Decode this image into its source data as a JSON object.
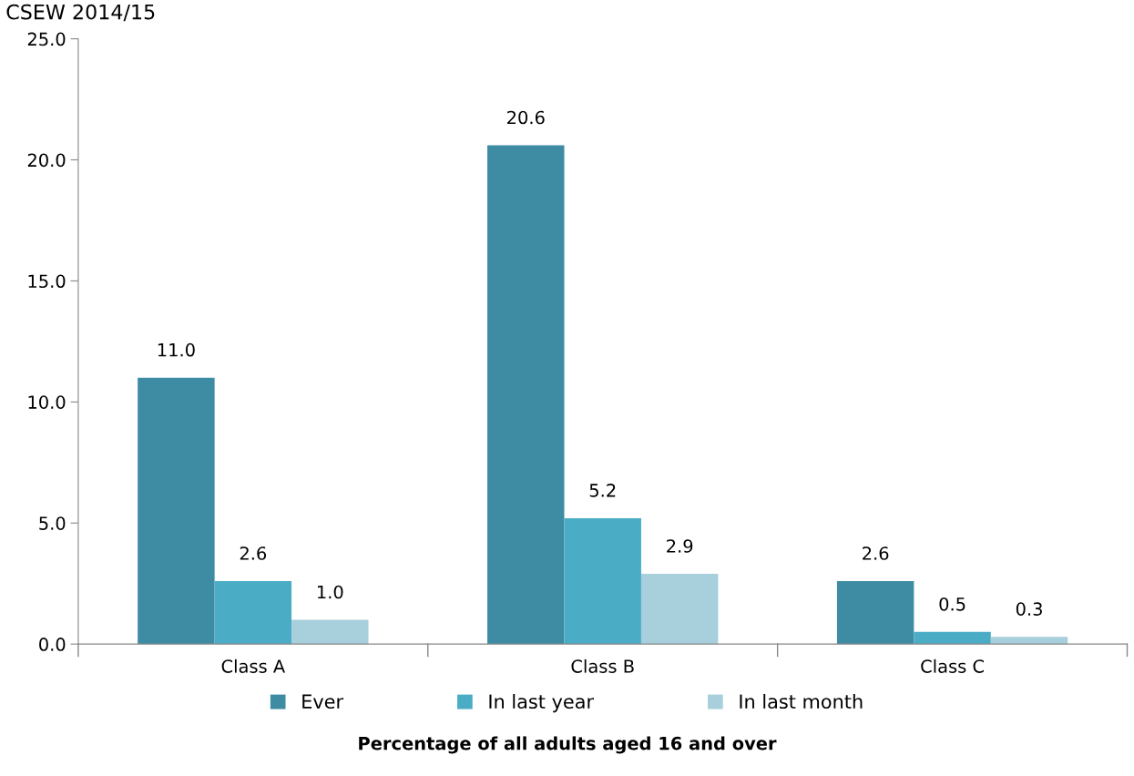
{
  "chart_data": {
    "type": "bar",
    "title": "CSEW 2014/15",
    "xlabel": "Percentage of all adults aged 16 and over",
    "categories": [
      "Class A",
      "Class B",
      "Class C"
    ],
    "series": [
      {
        "name": "Ever",
        "color": "#3d8ca3",
        "values": [
          11.0,
          20.6,
          2.6
        ],
        "value_labels": [
          "11.0",
          "20.6",
          "2.6"
        ]
      },
      {
        "name": "In last year",
        "color": "#4bacc6",
        "values": [
          2.6,
          5.2,
          0.5
        ],
        "value_labels": [
          "2.6",
          "5.2",
          "0.5"
        ]
      },
      {
        "name": "In last month",
        "color": "#a8cfdc",
        "values": [
          1.0,
          2.9,
          0.3
        ],
        "value_labels": [
          "1.0",
          "2.9",
          "0.3"
        ]
      }
    ],
    "ylim": [
      0,
      25
    ],
    "yticks": [
      {
        "value": 0,
        "label": "0.0"
      },
      {
        "value": 5,
        "label": "5.0"
      },
      {
        "value": 10,
        "label": "10.0"
      },
      {
        "value": 15,
        "label": "15.0"
      },
      {
        "value": 20,
        "label": "20.0"
      },
      {
        "value": 25,
        "label": "25.0"
      }
    ],
    "legend": "bottom",
    "grid": false
  }
}
